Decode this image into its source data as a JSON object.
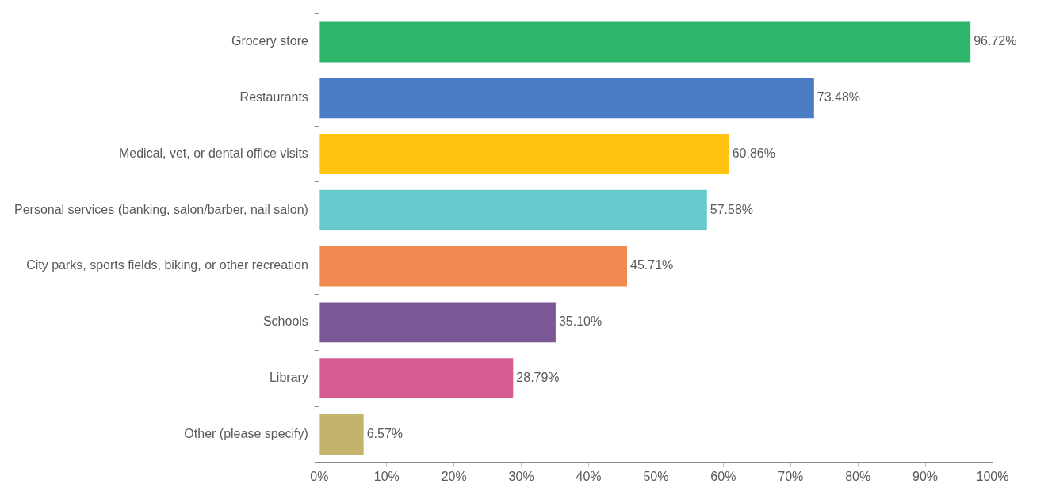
{
  "chart_data": {
    "type": "bar",
    "orientation": "horizontal",
    "categories": [
      "Grocery store",
      "Restaurants",
      "Medical, vet, or dental office visits",
      "Personal services (banking, salon/barber, nail salon)",
      "City parks, sports fields, biking, or other recreation",
      "Schools",
      "Library",
      "Other (please specify)"
    ],
    "values": [
      96.72,
      73.48,
      60.86,
      57.58,
      45.71,
      35.1,
      28.79,
      6.57
    ],
    "value_labels": [
      "96.72%",
      "73.48%",
      "60.86%",
      "57.58%",
      "45.71%",
      "35.10%",
      "28.79%",
      "6.57%"
    ],
    "colors": [
      "#2db56a",
      "#4a7cc4",
      "#ffc20e",
      "#66c9cc",
      "#f0894f",
      "#7a5895",
      "#d45c93",
      "#c4b36b"
    ],
    "xlim": [
      0,
      100
    ],
    "xticks": [
      {
        "value": 0,
        "label": "0%"
      },
      {
        "value": 10,
        "label": "10%"
      },
      {
        "value": 20,
        "label": "20%"
      },
      {
        "value": 30,
        "label": "30%"
      },
      {
        "value": 40,
        "label": "40%"
      },
      {
        "value": 50,
        "label": "50%"
      },
      {
        "value": 60,
        "label": "60%"
      },
      {
        "value": 70,
        "label": "70%"
      },
      {
        "value": 80,
        "label": "80%"
      },
      {
        "value": 90,
        "label": "90%"
      },
      {
        "value": 100,
        "label": "100%"
      }
    ],
    "grid": false,
    "legend": false
  }
}
